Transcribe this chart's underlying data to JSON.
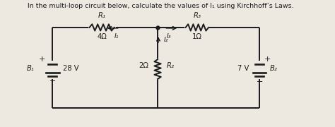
{
  "title": "In the multi-loop circuit below, calculate the values of I₁ using Kirchhoff’s Laws.",
  "bg_color": "#ede9e1",
  "line_color": "#1a1a1a",
  "text_color": "#1a1a1a",
  "R1_label": "R₁",
  "R1_val": "4Ω",
  "R2_label": "R₂",
  "R2_val": "2Ω",
  "R3_label": "R₃",
  "R3_val": "1Ω",
  "B1_label": "B₁",
  "B1_val": "28 V",
  "B2_label": "B₂",
  "B2_val": "7 V",
  "I1_label": "I₁",
  "I2_label": "I₂",
  "I3_label": "I₃",
  "figsize": [
    4.74,
    1.8
  ],
  "dpi": 100,
  "xlim": [
    0,
    10
  ],
  "ylim": [
    0,
    3.8
  ],
  "title_fontsize": 6.8,
  "label_fontsize": 7.2,
  "lw": 1.4
}
